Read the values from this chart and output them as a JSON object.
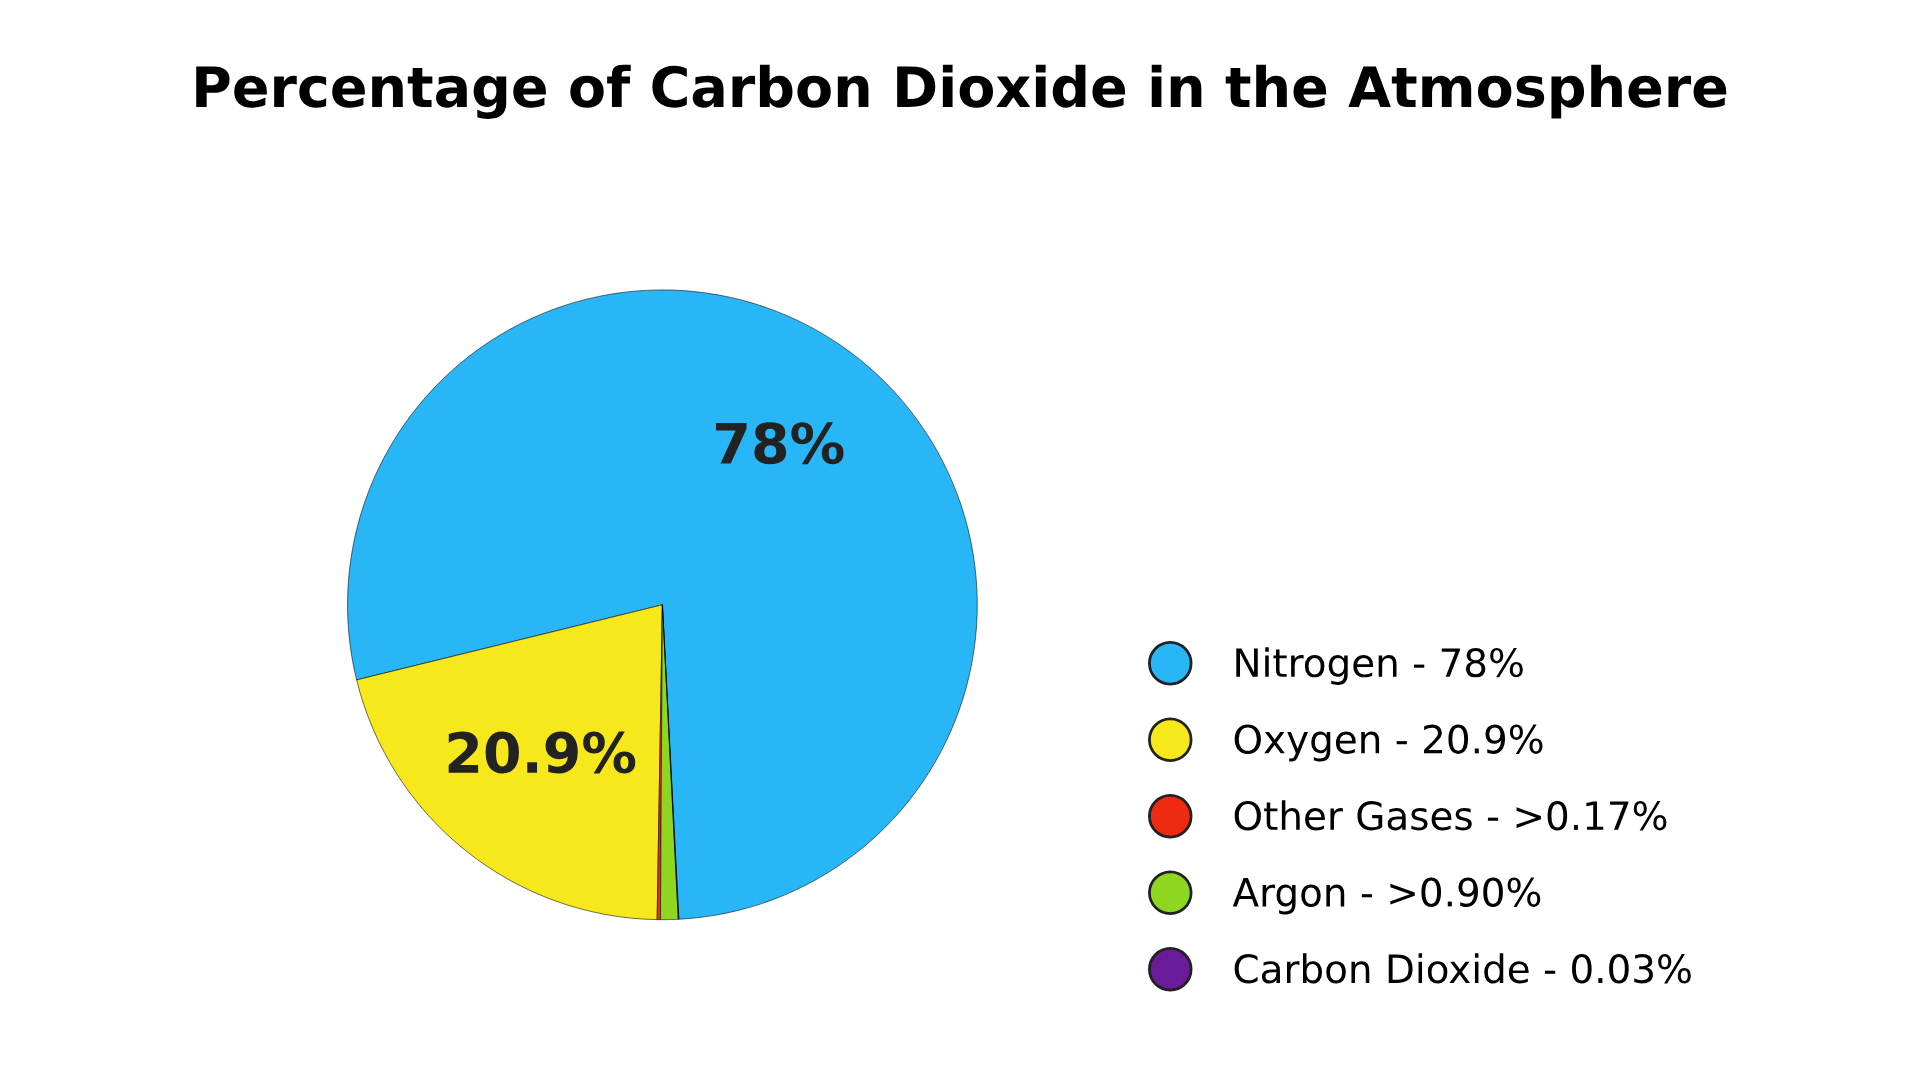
{
  "chart_data": {
    "type": "pie",
    "title": "Percentage of Carbon Dioxide in the Atmosphere",
    "categories": [
      "Nitrogen - 78%",
      "Oxygen - 20.9%",
      "Other Gases - >0.17%",
      "Argon - >0.90%",
      "Carbon Dioxide - 0.03%"
    ],
    "values": [
      78,
      20.9,
      0.17,
      0.9,
      0.03
    ],
    "colors": [
      "#29b6f6",
      "#f7e81c",
      "#f02a10",
      "#8fd620",
      "#6a1b9a"
    ],
    "value_labels": [
      "78%",
      "20.9%",
      null,
      null,
      null
    ],
    "legend": "bottom right"
  }
}
